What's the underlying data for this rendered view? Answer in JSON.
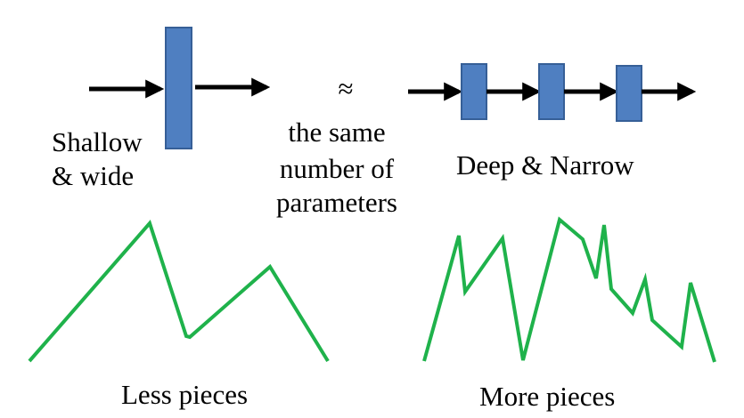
{
  "labels": {
    "shallow_line1": "Shallow",
    "shallow_line2": "& wide",
    "approx": "≈",
    "same_line1": "the same",
    "same_line2": "number of",
    "same_line3": "parameters",
    "deep": "Deep & Narrow",
    "less": "Less pieces",
    "more": "More pieces"
  },
  "colors": {
    "block_fill": "#4f7fc1",
    "block_stroke": "#365f97",
    "arrow": "#000000",
    "curve": "#1fb24b"
  },
  "icons": [
    "right-arrow-icon",
    "layer-block"
  ]
}
